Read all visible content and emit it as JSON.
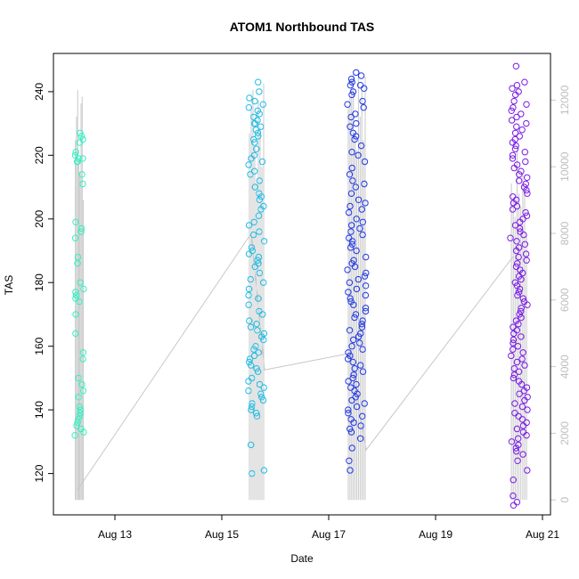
{
  "chart_data": {
    "type": "scatter",
    "title": "ATOM1 Northbound TAS",
    "xlabel": "Date",
    "ylabel": "TAS",
    "x_ticks": [
      "Aug 13",
      "Aug 15",
      "Aug 17",
      "Aug 19",
      "Aug 21"
    ],
    "x_tick_days": [
      13,
      15,
      17,
      19,
      21
    ],
    "xlim_days": [
      11.85,
      21.15
    ],
    "y_ticks": [
      120,
      140,
      160,
      180,
      200,
      220,
      240
    ],
    "ylim": [
      107,
      252
    ],
    "y2_ticks": [
      0,
      2000,
      4000,
      6000,
      8000,
      10000,
      12000
    ],
    "y2lim": [
      -450,
      13400
    ],
    "secondary_color": "#c8c8c8",
    "grid": false,
    "legend": "none",
    "groups": [
      {
        "date": "Aug 12",
        "x_range": [
          12.25,
          12.42
        ],
        "color": "#2ff2c3",
        "tas": [
          226,
          227,
          225,
          224,
          221,
          219,
          218,
          220,
          219,
          218,
          214,
          211,
          199,
          197,
          196,
          194,
          188,
          186,
          180,
          178,
          177,
          176,
          175,
          174,
          170,
          164,
          158,
          156,
          150,
          148,
          146,
          144,
          141,
          140,
          139,
          138,
          137,
          136,
          135,
          134,
          133,
          132
        ],
        "spikes_y2": [
          10800,
          11500,
          12300,
          10200,
          9800,
          11900,
          12100,
          9000
        ]
      },
      {
        "date": "Aug 15",
        "x_range": [
          15.5,
          15.8
        ],
        "color": "#1fbde6",
        "tas": [
          243,
          240,
          238,
          237,
          236,
          235,
          234,
          233,
          232,
          231,
          230,
          230,
          229,
          228,
          227,
          226,
          225,
          224,
          222,
          220,
          219,
          218,
          217,
          215,
          214,
          212,
          210,
          208,
          207,
          206,
          204,
          203,
          201,
          199,
          198,
          196,
          195,
          193,
          191,
          190,
          189,
          188,
          187,
          186,
          185,
          183,
          181,
          180,
          178,
          176,
          175,
          173,
          171,
          170,
          168,
          167,
          166,
          165,
          164,
          163,
          162,
          160,
          159,
          158,
          157,
          156,
          155,
          154,
          153,
          152,
          150,
          149,
          148,
          147,
          146,
          145,
          144,
          143,
          142,
          141,
          140,
          139,
          138,
          129,
          121,
          120
        ],
        "spikes_y2": [
          11000,
          11800,
          12300,
          10600,
          9500,
          12000,
          11200,
          10000,
          12500
        ]
      },
      {
        "date": "Aug 17",
        "x_range": [
          17.35,
          17.7
        ],
        "color": "#2239e6",
        "tas": [
          246,
          245,
          244,
          243,
          242,
          242,
          241,
          240,
          239,
          237,
          236,
          235,
          233,
          232,
          230,
          229,
          227,
          226,
          225,
          223,
          221,
          220,
          218,
          216,
          214,
          212,
          211,
          210,
          208,
          206,
          205,
          204,
          203,
          202,
          200,
          199,
          198,
          197,
          196,
          195,
          194,
          193,
          192,
          191,
          190,
          188,
          187,
          186,
          185,
          184,
          183,
          182,
          181,
          180,
          179,
          178,
          177,
          176,
          175,
          174,
          173,
          172,
          171,
          170,
          169,
          168,
          167,
          166,
          165,
          164,
          163,
          162,
          161,
          160,
          159,
          158,
          157,
          156,
          155,
          154,
          153,
          152,
          151,
          150,
          149,
          148,
          147,
          146,
          145,
          144,
          143,
          142,
          141,
          140,
          139,
          138,
          137,
          136,
          135,
          134,
          133,
          131,
          128,
          124,
          121
        ],
        "spikes_y2": [
          11800,
          12100,
          12600,
          12800,
          11000,
          10500,
          12900,
          11500,
          12300,
          10800,
          12700
        ]
      },
      {
        "date": "Aug 20",
        "x_range": [
          20.4,
          20.72
        ],
        "color": "#7a1be6",
        "tas": [
          248,
          243,
          242,
          241,
          240,
          239,
          237,
          236,
          235,
          234,
          233,
          232,
          231,
          230,
          229,
          228,
          227,
          226,
          225,
          224,
          223,
          222,
          221,
          220,
          219,
          218,
          217,
          216,
          215,
          214,
          213,
          212,
          211,
          210,
          209,
          208,
          207,
          206,
          205,
          204,
          203,
          202,
          201,
          200,
          199,
          198,
          197,
          196,
          195,
          194,
          193,
          192,
          191,
          190,
          189,
          188,
          187,
          186,
          185,
          184,
          183,
          182,
          181,
          180,
          179,
          178,
          177,
          176,
          175,
          174,
          173,
          172,
          171,
          170,
          169,
          168,
          167,
          166,
          165,
          164,
          163,
          162,
          161,
          160,
          159,
          158,
          157,
          156,
          155,
          154,
          153,
          152,
          151,
          150,
          149,
          148,
          147,
          146,
          145,
          144,
          143,
          142,
          141,
          140,
          139,
          138,
          137,
          136,
          135,
          134,
          133,
          132,
          131,
          130,
          129,
          128,
          127,
          126,
          124,
          121,
          118,
          113,
          111,
          110
        ],
        "spikes_y2": [
          9500,
          9000,
          8500,
          10500,
          9200,
          8800,
          9800,
          9300,
          8000
        ]
      }
    ],
    "secondary_path": [
      {
        "x": 12.3,
        "y2": 300
      },
      {
        "x": 15.55,
        "y2": 8000
      },
      {
        "x": 15.8,
        "y2": 3900
      },
      {
        "x": 17.4,
        "y2": 4400
      },
      {
        "x": 17.7,
        "y2": 1500
      },
      {
        "x": 20.45,
        "y2": 7300
      }
    ]
  }
}
